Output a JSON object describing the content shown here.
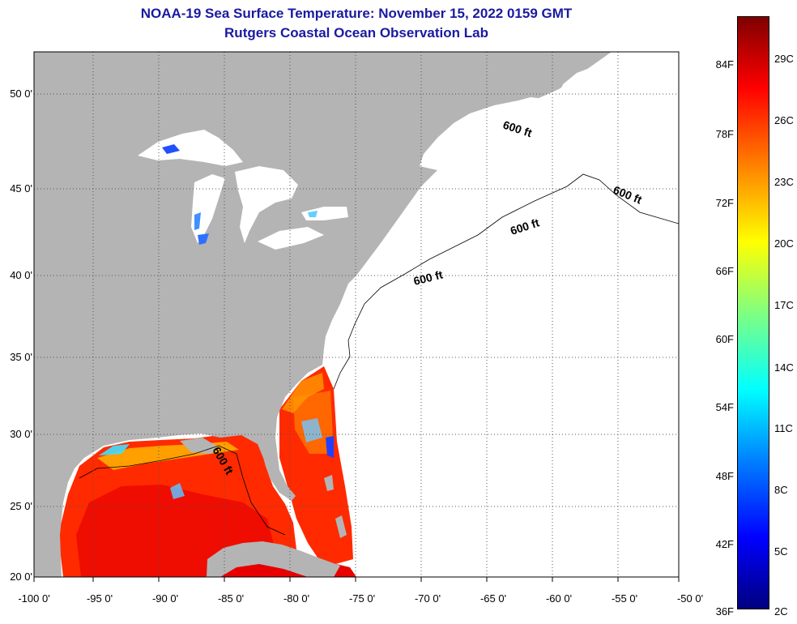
{
  "title_line1": "NOAA-19 Sea Surface Temperature:  November 15, 2022 0159 GMT",
  "title_line2": "Rutgers Coastal Ocean Observation Lab",
  "lat_labels": [
    {
      "text": "50 0'",
      "lat": 50
    },
    {
      "text": "45 0'",
      "lat": 45
    },
    {
      "text": "40 0'",
      "lat": 40
    },
    {
      "text": "35 0'",
      "lat": 35
    },
    {
      "text": "30 0'",
      "lat": 30
    },
    {
      "text": "25 0'",
      "lat": 25
    },
    {
      "text": "20 0'",
      "lat": 20
    }
  ],
  "lon_labels": [
    {
      "text": "-100 0'",
      "lon": -100
    },
    {
      "text": "-95 0'",
      "lon": -95
    },
    {
      "text": "-90 0'",
      "lon": -90
    },
    {
      "text": "-85 0'",
      "lon": -85
    },
    {
      "text": "-80 0'",
      "lon": -80
    },
    {
      "text": "-75 0'",
      "lon": -75
    },
    {
      "text": "-70 0'",
      "lon": -70
    },
    {
      "text": "-65 0'",
      "lon": -65
    },
    {
      "text": "-60 0'",
      "lon": -60
    },
    {
      "text": "-55 0'",
      "lon": -55
    },
    {
      "text": "-50 0'",
      "lon": -50
    }
  ],
  "depth_label": "600 ft",
  "colorbar": {
    "fahrenheit": [
      "84F",
      "78F",
      "72F",
      "66F",
      "60F",
      "54F",
      "48F",
      "42F",
      "36F"
    ],
    "celsius": [
      "29C",
      "26C",
      "23C",
      "20C",
      "17C",
      "14C",
      "11C",
      "8C",
      "5C",
      "2C"
    ]
  },
  "colors": {
    "land": "#b4b4b4",
    "title": "#1a1aa0",
    "sst_warm": "#ff2a00",
    "sst_hot": "#e80000",
    "sst_cool": "#ffa000"
  }
}
